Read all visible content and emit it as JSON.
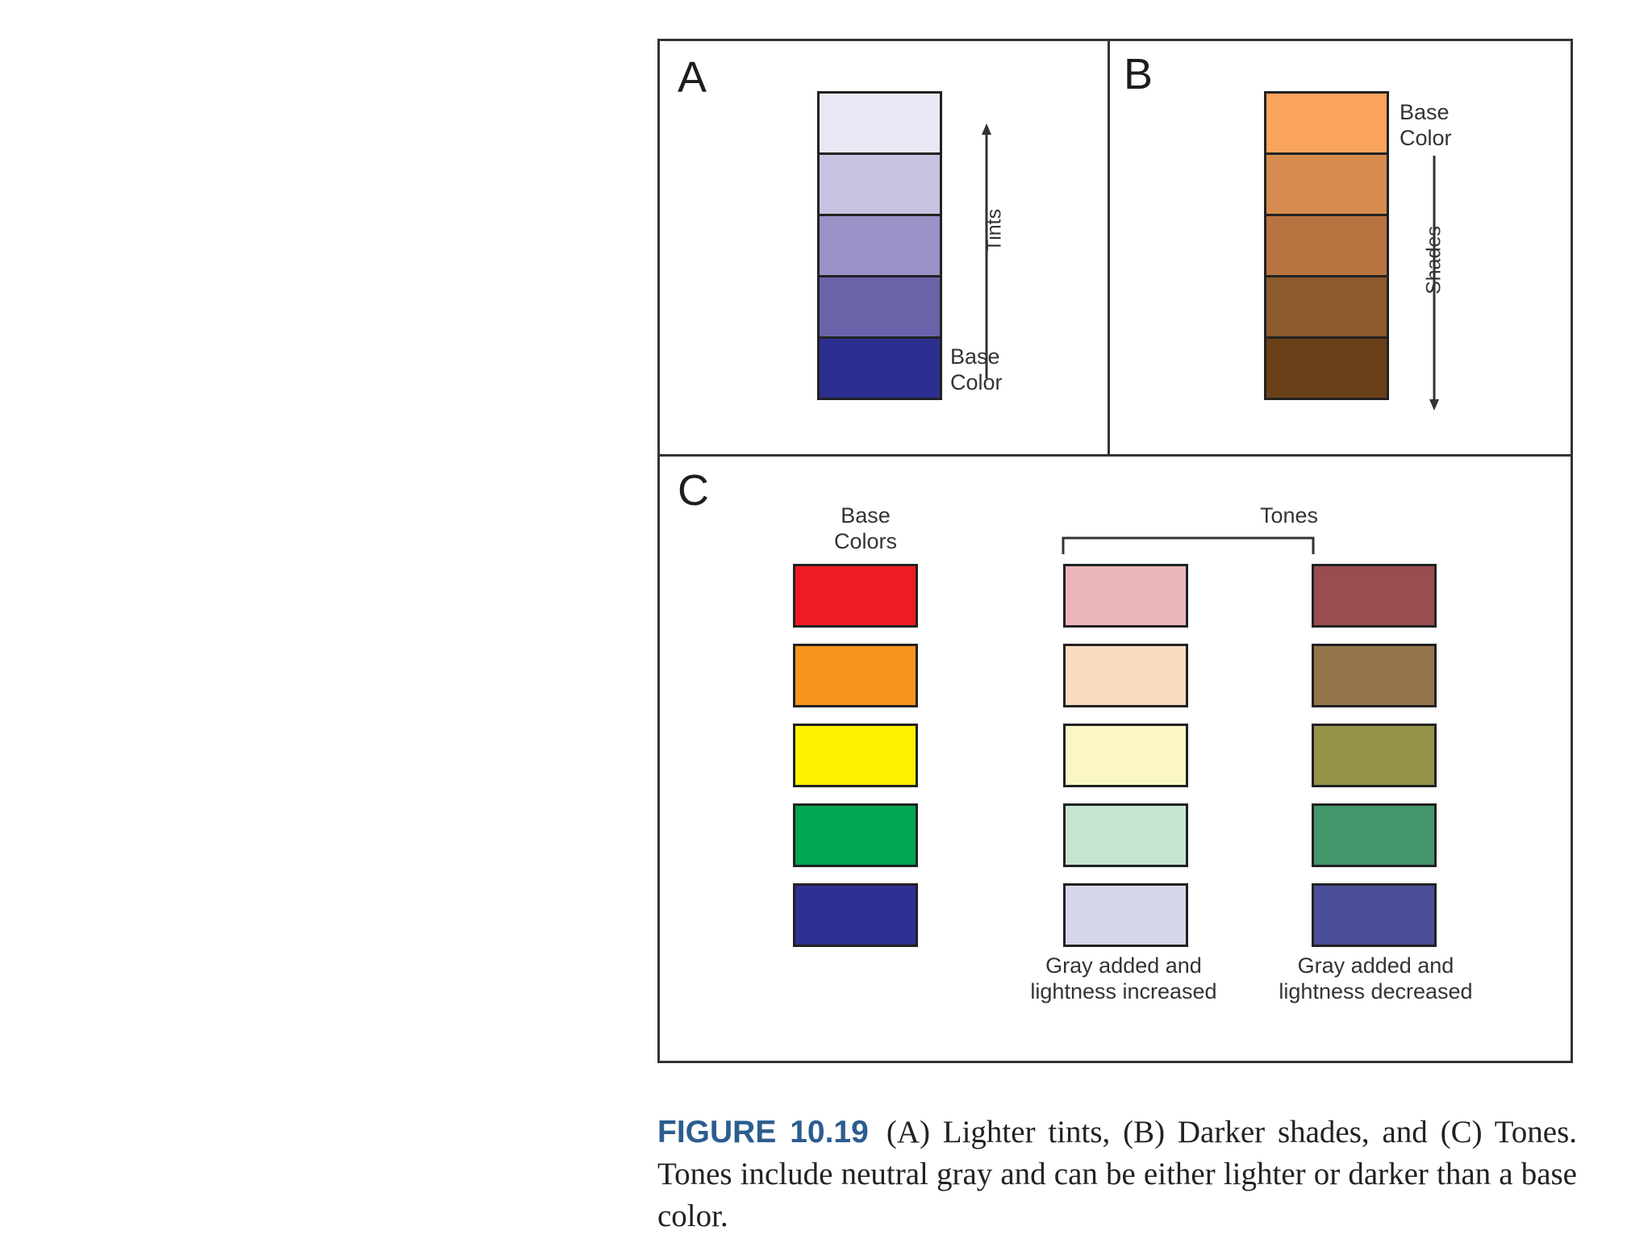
{
  "panels": {
    "a": {
      "letter": "A",
      "arrow_label": "Tints",
      "base_label_line1": "Base",
      "base_label_line2": "Color",
      "swatch_colors": [
        "#e9e9f5",
        "#c6c3e0",
        "#9a92c7",
        "#6b63aa",
        "#2c2f8f"
      ]
    },
    "b": {
      "letter": "B",
      "base_label_line1": "Base",
      "base_label_line2": "Color",
      "arrow_label": "Shades",
      "swatch_colors": [
        "#f9a35c",
        "#d58c4e",
        "#b87340",
        "#8c5a2d",
        "#6a4019"
      ]
    },
    "c": {
      "letter": "C",
      "base_colors_line1": "Base",
      "base_colors_line2": "Colors",
      "tones_label": "Tones",
      "base_colors": [
        "#ed1c24",
        "#f7941d",
        "#fff200",
        "#00a651",
        "#2e3192"
      ],
      "lighter_tones": [
        "#ebb5b8",
        "#f7dcbd",
        "#fbf7c4",
        "#c6e4d2",
        "#d6d6ea"
      ],
      "darker_tones": [
        "#9a4d50",
        "#96744b",
        "#95924a",
        "#43976a",
        "#4a4f98"
      ],
      "lighter_caption_line1": "Gray added and",
      "lighter_caption_line2": "lightness increased",
      "darker_caption_line1": "Gray added and",
      "darker_caption_line2": "lightness decreased"
    }
  },
  "caption": {
    "figure_label": "FIGURE 10.19",
    "text": "(A) Lighter tints, (B) Darker shades, and (C) Tones. Tones include neutral gray and can be either lighter or darker than a base color."
  }
}
